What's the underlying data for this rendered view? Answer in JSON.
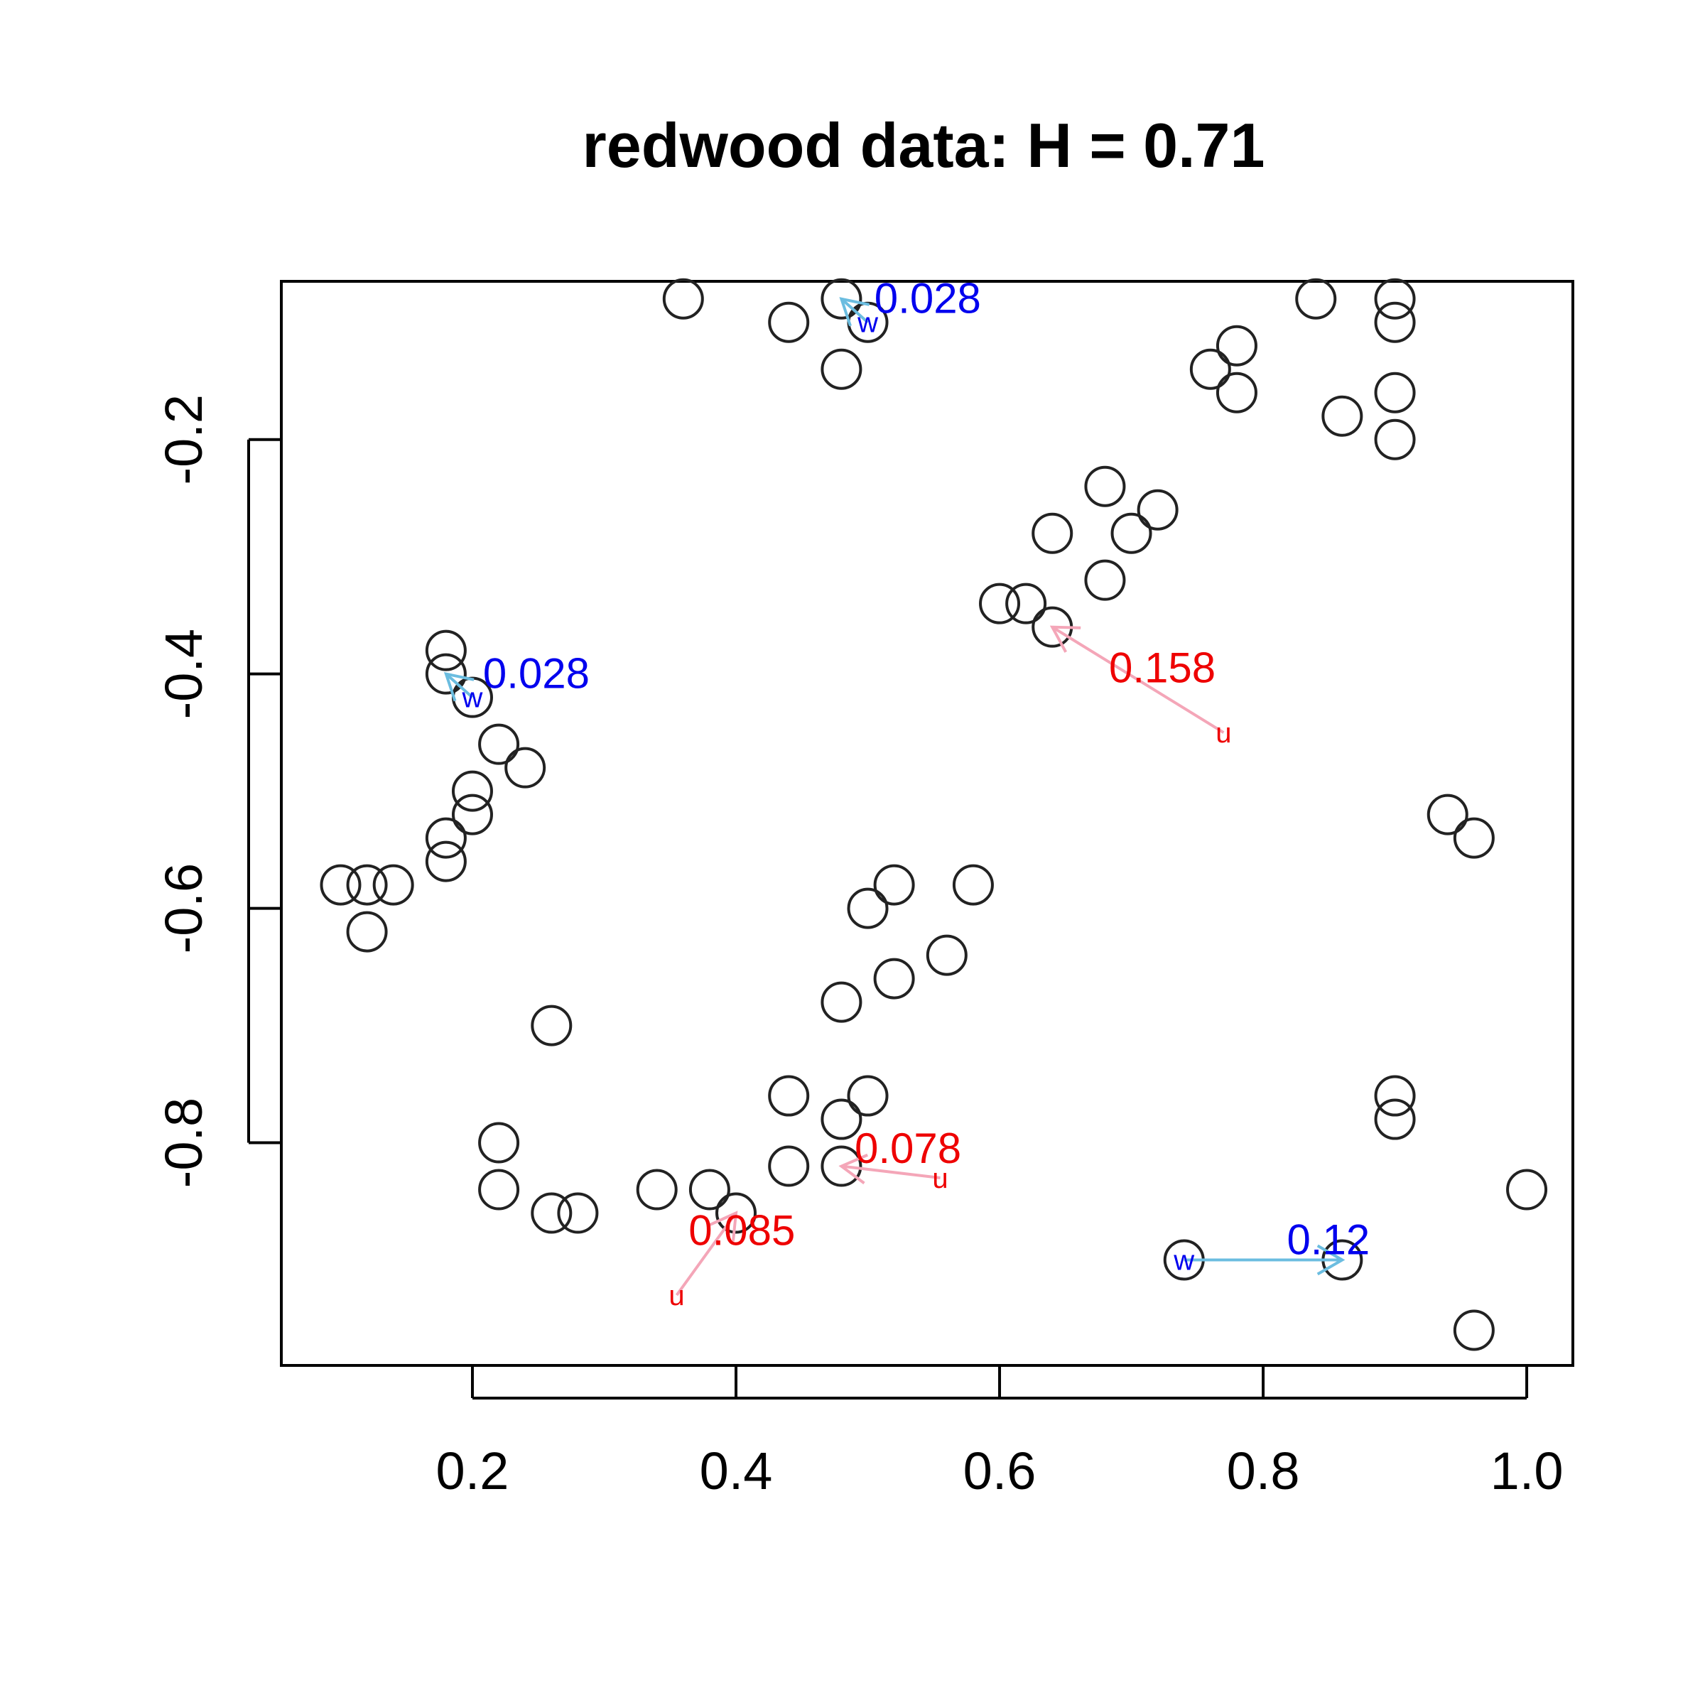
{
  "chart_data": {
    "type": "scatter",
    "title": "redwood data: H = 0.71",
    "xlabel": "",
    "ylabel": "",
    "xlim": [
      0.055,
      1.035
    ],
    "ylim": [
      -0.99,
      -0.065
    ],
    "xticks": [
      0.2,
      0.4,
      0.6,
      0.8,
      1.0
    ],
    "xtick_labels": [
      "0.2",
      "0.4",
      "0.6",
      "0.8",
      "1.0"
    ],
    "yticks": [
      -0.2,
      -0.4,
      -0.6,
      -0.8
    ],
    "ytick_labels": [
      "-0.2",
      "-0.4",
      "-0.6",
      "-0.8"
    ],
    "grid": false,
    "colors": {
      "points": "#222222",
      "w_arrow": "#6bbde0",
      "w_text": "#0000ee",
      "u_arrow": "#f4a6b8",
      "u_text": "#ee0000"
    },
    "points": [
      [
        0.36,
        -0.08
      ],
      [
        0.44,
        -0.1
      ],
      [
        0.48,
        -0.08
      ],
      [
        0.5,
        -0.1
      ],
      [
        0.48,
        -0.14
      ],
      [
        0.76,
        -0.14
      ],
      [
        0.78,
        -0.12
      ],
      [
        0.78,
        -0.16
      ],
      [
        0.84,
        -0.08
      ],
      [
        0.86,
        -0.18
      ],
      [
        0.9,
        -0.08
      ],
      [
        0.9,
        -0.1
      ],
      [
        0.9,
        -0.16
      ],
      [
        0.9,
        -0.2
      ],
      [
        0.68,
        -0.24
      ],
      [
        0.72,
        -0.26
      ],
      [
        0.7,
        -0.28
      ],
      [
        0.64,
        -0.28
      ],
      [
        0.68,
        -0.32
      ],
      [
        0.6,
        -0.34
      ],
      [
        0.62,
        -0.34
      ],
      [
        0.64,
        -0.36
      ],
      [
        0.18,
        -0.38
      ],
      [
        0.18,
        -0.4
      ],
      [
        0.2,
        -0.42
      ],
      [
        0.22,
        -0.46
      ],
      [
        0.24,
        -0.48
      ],
      [
        0.2,
        -0.5
      ],
      [
        0.2,
        -0.52
      ],
      [
        0.18,
        -0.54
      ],
      [
        0.18,
        -0.56
      ],
      [
        0.1,
        -0.58
      ],
      [
        0.12,
        -0.58
      ],
      [
        0.14,
        -0.58
      ],
      [
        0.12,
        -0.62
      ],
      [
        0.94,
        -0.52
      ],
      [
        0.96,
        -0.54
      ],
      [
        0.52,
        -0.58
      ],
      [
        0.58,
        -0.58
      ],
      [
        0.5,
        -0.6
      ],
      [
        0.56,
        -0.64
      ],
      [
        0.52,
        -0.66
      ],
      [
        0.48,
        -0.68
      ],
      [
        0.26,
        -0.7
      ],
      [
        0.44,
        -0.76
      ],
      [
        0.5,
        -0.76
      ],
      [
        0.48,
        -0.78
      ],
      [
        0.44,
        -0.82
      ],
      [
        0.48,
        -0.82
      ],
      [
        0.22,
        -0.8
      ],
      [
        0.22,
        -0.84
      ],
      [
        0.26,
        -0.86
      ],
      [
        0.28,
        -0.86
      ],
      [
        0.34,
        -0.84
      ],
      [
        0.38,
        -0.84
      ],
      [
        0.4,
        -0.86
      ],
      [
        0.9,
        -0.76
      ],
      [
        0.9,
        -0.78
      ],
      [
        1.0,
        -0.84
      ],
      [
        0.86,
        -0.9
      ],
      [
        0.74,
        -0.9
      ],
      [
        0.96,
        -0.96
      ]
    ],
    "annotations": [
      {
        "kind": "w",
        "marker": "w",
        "from": [
          0.5,
          -0.1
        ],
        "to": [
          0.48,
          -0.08
        ],
        "value": "0.028",
        "label_at": [
          0.505,
          -0.08
        ]
      },
      {
        "kind": "w",
        "marker": "w",
        "from": [
          0.2,
          -0.42
        ],
        "to": [
          0.18,
          -0.4
        ],
        "value": "0.028",
        "label_at": [
          0.208,
          -0.4
        ]
      },
      {
        "kind": "w",
        "marker": "w",
        "from": [
          0.74,
          -0.9
        ],
        "to": [
          0.86,
          -0.9
        ],
        "value": "0.12",
        "label_at": [
          0.818,
          -0.883
        ]
      },
      {
        "kind": "u",
        "marker": "u",
        "from": [
          0.77,
          -0.45
        ],
        "to": [
          0.64,
          -0.36
        ],
        "value": "0.158",
        "label_at": [
          0.683,
          -0.395
        ]
      },
      {
        "kind": "u",
        "marker": "u",
        "from": [
          0.555,
          -0.83
        ],
        "to": [
          0.48,
          -0.82
        ],
        "value": "0.078",
        "label_at": [
          0.49,
          -0.805
        ]
      },
      {
        "kind": "u",
        "marker": "u",
        "from": [
          0.355,
          -0.93
        ],
        "to": [
          0.4,
          -0.86
        ],
        "value": "0.085",
        "label_at": [
          0.364,
          -0.875
        ]
      }
    ]
  }
}
